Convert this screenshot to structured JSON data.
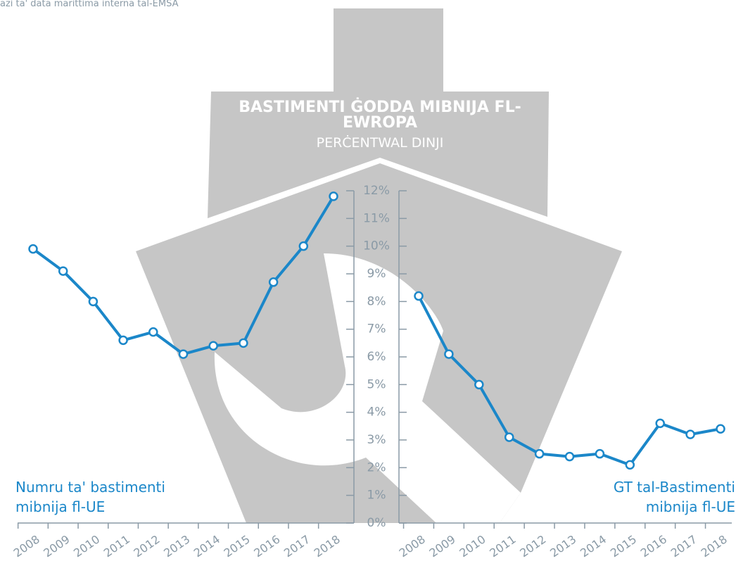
{
  "source": "azi ta' data marittima interna tal-EMSA",
  "chart_data": [
    {
      "type": "line",
      "title": "BASTIMENTI ĠODDA MIBNIJA FL-EWROPA",
      "subtitle": "PERĊENTWAL DINJI",
      "categories": [
        "2008",
        "2009",
        "2010",
        "2011",
        "2012",
        "2013",
        "2014",
        "2015",
        "2016",
        "2017",
        "2018"
      ],
      "series": [
        {
          "name": "Numru ta' bastimenti mibnija fl-UE",
          "color": "#1b87c9",
          "values": [
            9.9,
            9.1,
            8.0,
            6.6,
            6.9,
            6.1,
            6.4,
            6.5,
            8.7,
            10.0,
            11.8
          ]
        }
      ],
      "ylim": [
        0,
        12
      ],
      "yticks": [
        {
          "value": 0,
          "label": "0%"
        },
        {
          "value": 1,
          "label": "1%"
        },
        {
          "value": 2,
          "label": "2%"
        },
        {
          "value": 3,
          "label": "3%"
        },
        {
          "value": 4,
          "label": "4%"
        },
        {
          "value": 5,
          "label": "5%"
        },
        {
          "value": 6,
          "label": "6%"
        },
        {
          "value": 7,
          "label": "7%"
        },
        {
          "value": 8,
          "label": "8%"
        },
        {
          "value": 9,
          "label": "9%"
        },
        {
          "value": 10,
          "label": "10%"
        },
        {
          "value": 11,
          "label": "11%"
        },
        {
          "value": 12,
          "label": "12%"
        }
      ]
    },
    {
      "type": "line",
      "categories": [
        "2008",
        "2009",
        "2010",
        "2011",
        "2012",
        "2013",
        "2014",
        "2015",
        "2016",
        "2017",
        "2018"
      ],
      "series": [
        {
          "name": "GT tal-Bastimenti mibnija fl-UE",
          "color": "#1b87c9",
          "values": [
            8.2,
            6.1,
            5.0,
            3.1,
            2.5,
            2.4,
            2.5,
            2.1,
            3.6,
            3.2,
            3.4
          ]
        }
      ],
      "ylim": [
        0,
        12
      ]
    }
  ]
}
